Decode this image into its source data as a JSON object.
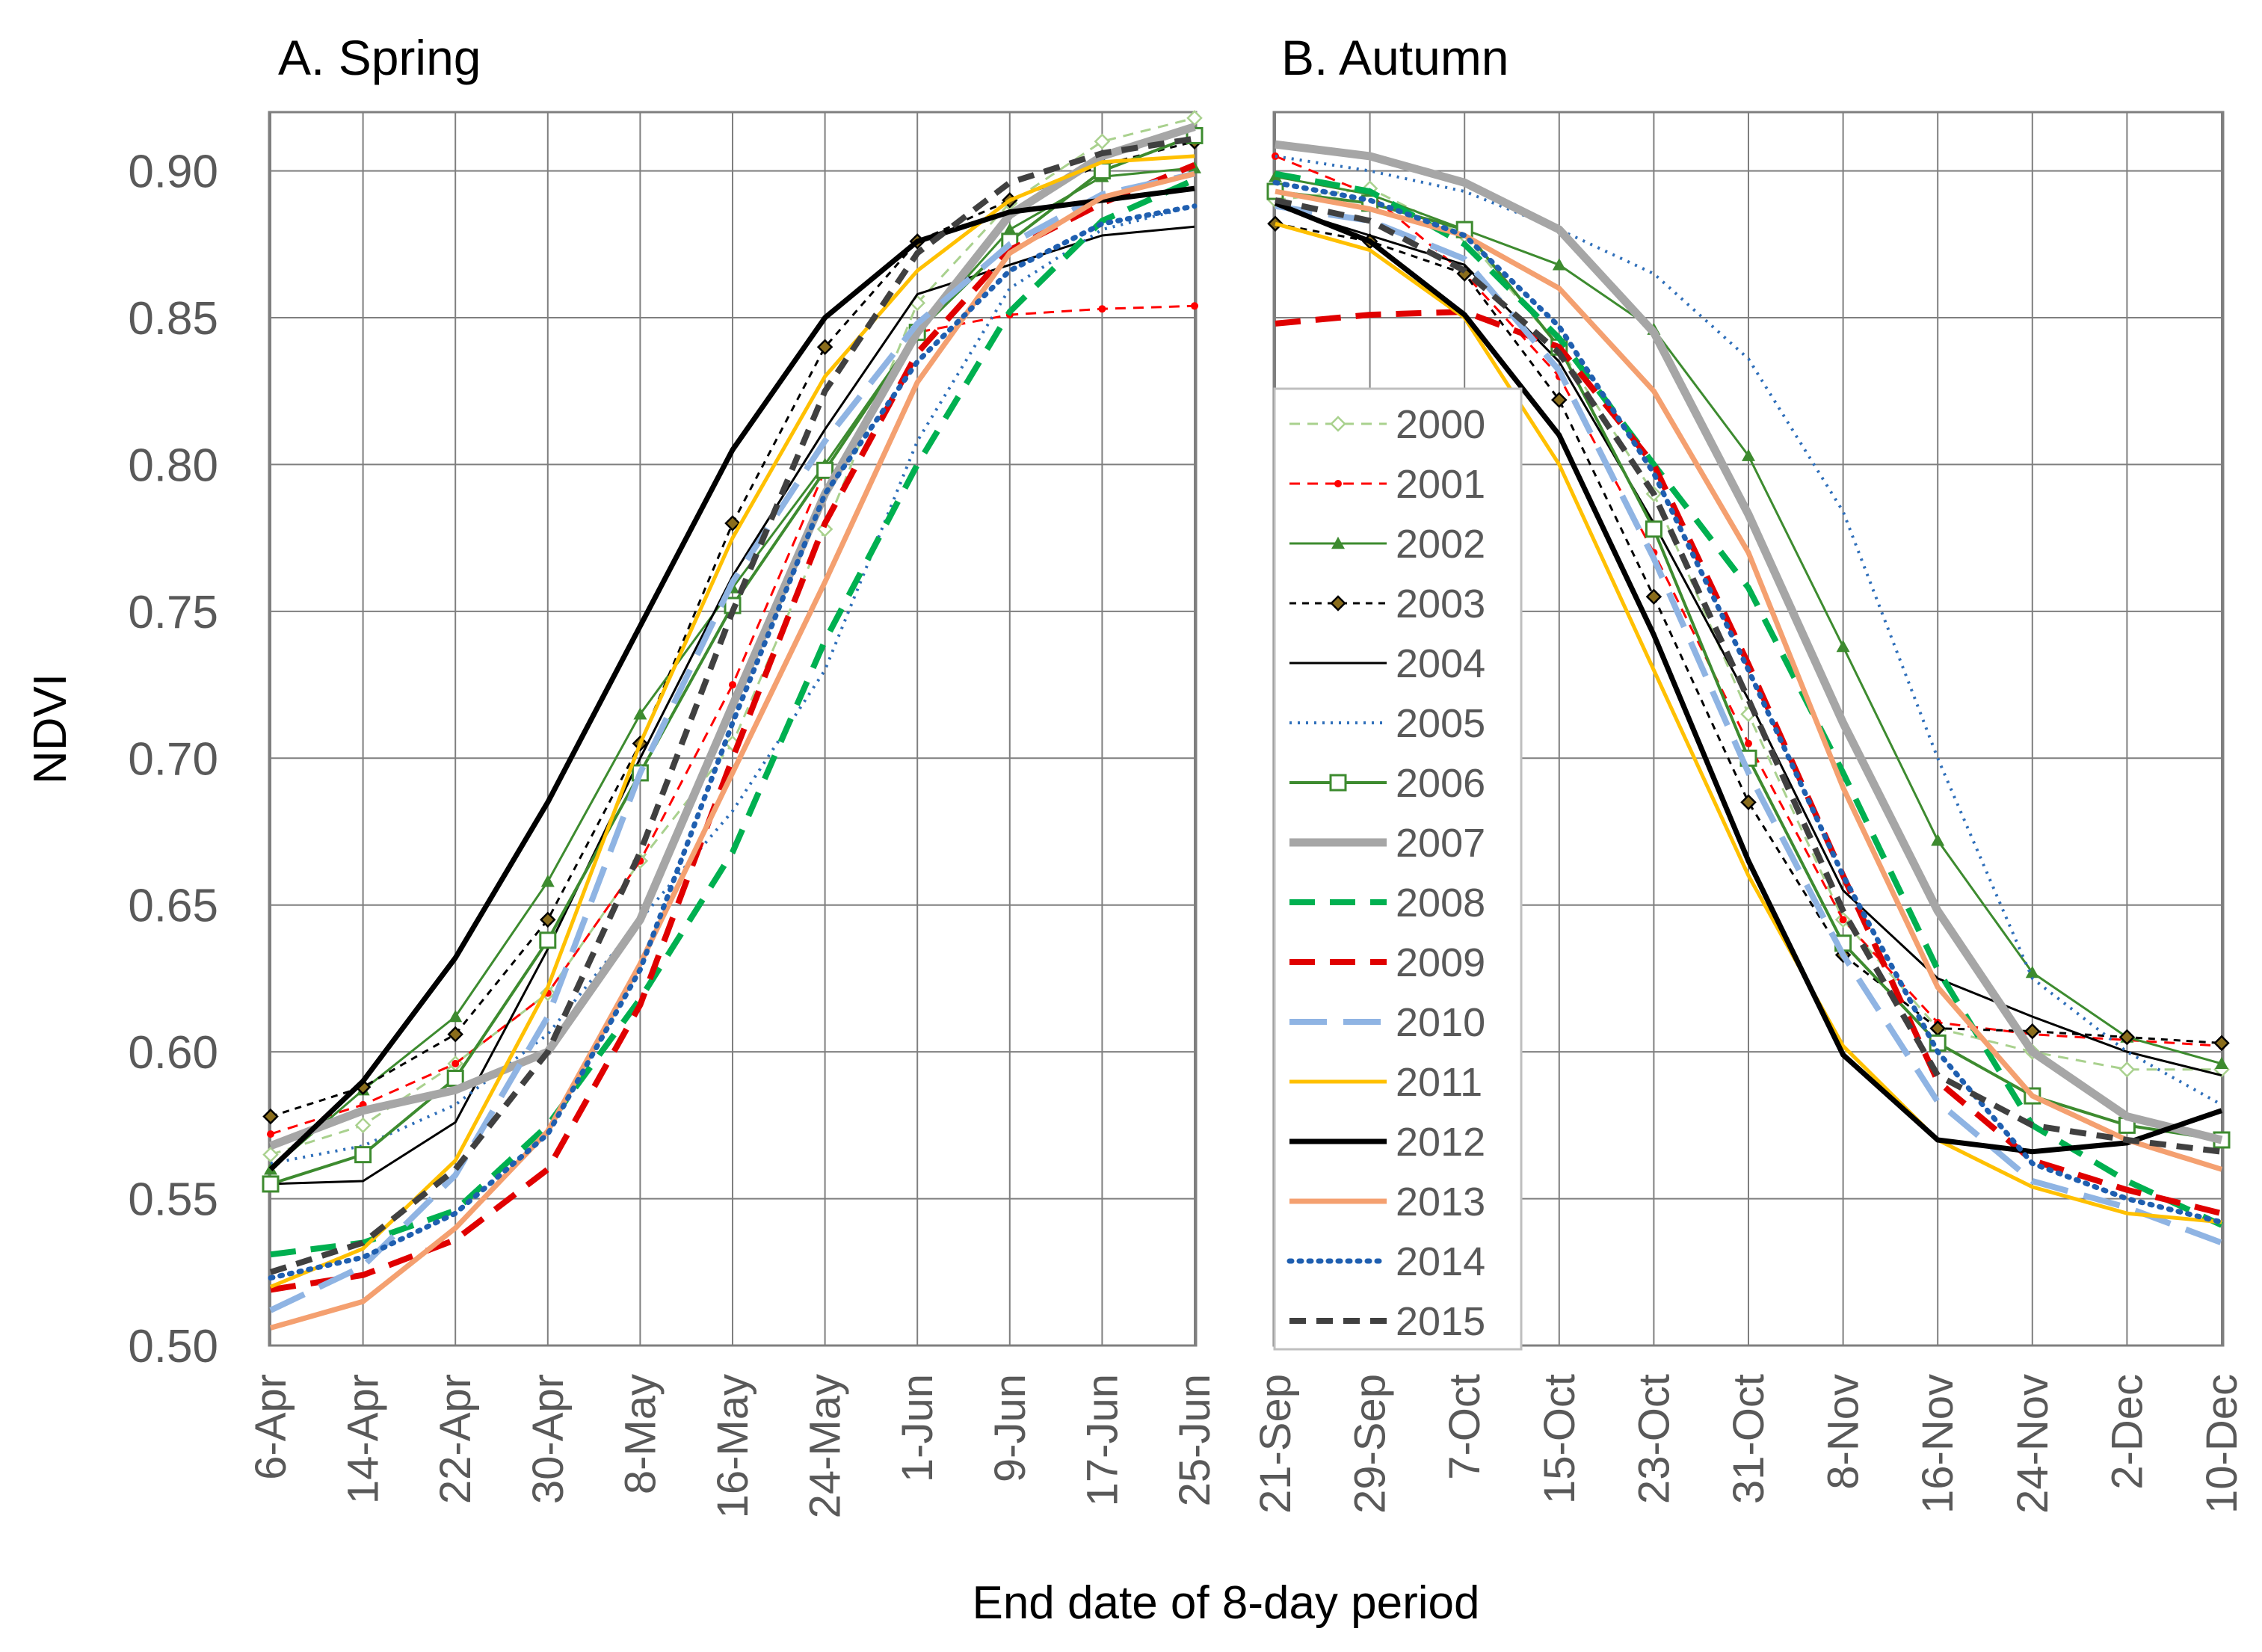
{
  "chart_data": {
    "type": "line",
    "y_label": "NDVI",
    "x_label": "End date of 8-day period",
    "ylim": [
      0.5,
      0.92
    ],
    "y_ticks": [
      "0.50",
      "0.55",
      "0.60",
      "0.65",
      "0.70",
      "0.75",
      "0.80",
      "0.85",
      "0.90"
    ],
    "legend_position": "inside autumn panel, left",
    "legend": [
      "2000",
      "2001",
      "2002",
      "2003",
      "2004",
      "2005",
      "2006",
      "2007",
      "2008",
      "2009",
      "2010",
      "2011",
      "2012",
      "2013",
      "2014",
      "2015"
    ],
    "styles": {
      "2000": {
        "color": "#a9d18e"
      },
      "2001": {
        "color": "#ff0000"
      },
      "2002": {
        "color": "#3d8b2f"
      },
      "2003": {
        "color": "#000000"
      },
      "2004": {
        "color": "#000000"
      },
      "2005": {
        "color": "#2f6fba"
      },
      "2006": {
        "color": "#3d8b2f"
      },
      "2007": {
        "color": "#a6a6a6"
      },
      "2008": {
        "color": "#00b050"
      },
      "2009": {
        "color": "#e00000"
      },
      "2010": {
        "color": "#8fb4e3"
      },
      "2011": {
        "color": "#ffc000"
      },
      "2012": {
        "color": "#000000"
      },
      "2013": {
        "color": "#f4a070"
      },
      "2014": {
        "color": "#1f5fb0"
      },
      "2015": {
        "color": "#404040"
      }
    },
    "panels": [
      {
        "title": "A. Spring",
        "categories": [
          "6-Apr",
          "14-Apr",
          "22-Apr",
          "30-Apr",
          "8-May",
          "16-May",
          "24-May",
          "1-Jun",
          "9-Jun",
          "17-Jun",
          "25-Jun"
        ],
        "series": [
          {
            "name": "2000",
            "values": [
              0.565,
              0.575,
              0.596,
              0.62,
              0.665,
              0.705,
              0.778,
              0.855,
              0.889,
              0.91,
              0.918
            ]
          },
          {
            "name": "2001",
            "values": [
              0.572,
              0.582,
              0.596,
              0.62,
              0.665,
              0.725,
              0.798,
              0.845,
              0.851,
              0.853,
              0.854
            ]
          },
          {
            "name": "2002",
            "values": [
              0.56,
              0.587,
              0.612,
              0.658,
              0.715,
              0.758,
              0.8,
              0.845,
              0.88,
              0.898,
              0.901
            ]
          },
          {
            "name": "2003",
            "values": [
              0.578,
              0.588,
              0.606,
              0.645,
              0.705,
              0.78,
              0.84,
              0.876,
              0.89,
              0.902,
              0.91
            ]
          },
          {
            "name": "2004",
            "values": [
              0.555,
              0.556,
              0.576,
              0.635,
              0.7,
              0.762,
              0.812,
              0.858,
              0.868,
              0.878,
              0.881
            ]
          },
          {
            "name": "2005",
            "values": [
              0.562,
              0.568,
              0.582,
              0.606,
              0.645,
              0.682,
              0.73,
              0.808,
              0.86,
              0.88,
              0.888
            ]
          },
          {
            "name": "2006",
            "values": [
              0.555,
              0.565,
              0.591,
              0.638,
              0.695,
              0.752,
              0.798,
              0.845,
              0.876,
              0.9,
              0.912
            ]
          },
          {
            "name": "2007",
            "values": [
              0.568,
              0.58,
              0.587,
              0.6,
              0.645,
              0.718,
              0.79,
              0.845,
              0.885,
              0.905,
              0.915
            ]
          },
          {
            "name": "2008",
            "values": [
              0.531,
              0.535,
              0.546,
              0.575,
              0.618,
              0.668,
              0.74,
              0.8,
              0.852,
              0.883,
              0.897
            ]
          },
          {
            "name": "2009",
            "values": [
              0.519,
              0.524,
              0.536,
              0.56,
              0.616,
              0.7,
              0.78,
              0.838,
              0.873,
              0.889,
              0.902
            ]
          },
          {
            "name": "2010",
            "values": [
              0.512,
              0.527,
              0.558,
              0.612,
              0.695,
              0.76,
              0.808,
              0.848,
              0.875,
              0.892,
              0.899
            ]
          },
          {
            "name": "2011",
            "values": [
              0.52,
              0.533,
              0.563,
              0.622,
              0.705,
              0.775,
              0.83,
              0.866,
              0.89,
              0.903,
              0.905
            ]
          },
          {
            "name": "2012",
            "values": [
              0.56,
              0.59,
              0.632,
              0.685,
              0.745,
              0.805,
              0.85,
              0.876,
              0.886,
              0.89,
              0.894
            ]
          },
          {
            "name": "2013",
            "values": [
              0.506,
              0.515,
              0.54,
              0.573,
              0.63,
              0.695,
              0.76,
              0.828,
              0.872,
              0.891,
              0.899
            ]
          },
          {
            "name": "2014",
            "values": [
              0.523,
              0.53,
              0.545,
              0.572,
              0.628,
              0.712,
              0.79,
              0.835,
              0.866,
              0.882,
              0.888
            ]
          },
          {
            "name": "2015",
            "values": [
              0.525,
              0.535,
              0.56,
              0.6,
              0.668,
              0.75,
              0.825,
              0.872,
              0.896,
              0.906,
              0.911
            ]
          }
        ]
      },
      {
        "title": "B. Autumn",
        "categories": [
          "21-Sep",
          "29-Sep",
          "7-Oct",
          "15-Oct",
          "23-Oct",
          "31-Oct",
          "8-Nov",
          "16-Nov",
          "24-Nov",
          "2-Dec",
          "10-Dec"
        ],
        "series": [
          {
            "name": "2000",
            "values": [
              0.89,
              0.894,
              0.878,
              0.84,
              0.79,
              0.715,
              0.645,
              0.608,
              0.6,
              0.594,
              0.594
            ]
          },
          {
            "name": "2001",
            "values": [
              0.905,
              0.892,
              0.865,
              0.83,
              0.77,
              0.705,
              0.645,
              0.61,
              0.606,
              0.604,
              0.602
            ]
          },
          {
            "name": "2002",
            "values": [
              0.898,
              0.892,
              0.88,
              0.868,
              0.846,
              0.803,
              0.738,
              0.672,
              0.627,
              0.605,
              0.596
            ]
          },
          {
            "name": "2003",
            "values": [
              0.882,
              0.876,
              0.865,
              0.822,
              0.755,
              0.685,
              0.633,
              0.608,
              0.607,
              0.605,
              0.603
            ]
          },
          {
            "name": "2004",
            "values": [
              0.888,
              0.878,
              0.868,
              0.835,
              0.78,
              0.72,
              0.655,
              0.625,
              0.612,
              0.6,
              0.592
            ]
          },
          {
            "name": "2005",
            "values": [
              0.905,
              0.9,
              0.893,
              0.88,
              0.865,
              0.836,
              0.784,
              0.7,
              0.625,
              0.6,
              0.582
            ]
          },
          {
            "name": "2006",
            "values": [
              0.893,
              0.889,
              0.88,
              0.84,
              0.778,
              0.7,
              0.637,
              0.603,
              0.585,
              0.575,
              0.57
            ]
          },
          {
            "name": "2007",
            "values": [
              0.909,
              0.905,
              0.896,
              0.88,
              0.845,
              0.783,
              0.712,
              0.648,
              0.6,
              0.578,
              0.57
            ]
          },
          {
            "name": "2008",
            "values": [
              0.899,
              0.893,
              0.875,
              0.843,
              0.8,
              0.758,
              0.695,
              0.628,
              0.575,
              0.556,
              0.541
            ]
          },
          {
            "name": "2009",
            "values": [
              0.848,
              0.851,
              0.852,
              0.84,
              0.8,
              0.732,
              0.66,
              0.59,
              0.563,
              0.553,
              0.545
            ]
          },
          {
            "name": "2010",
            "values": [
              0.888,
              0.883,
              0.87,
              0.832,
              0.768,
              0.695,
              0.633,
              0.583,
              0.556,
              0.547,
              0.535
            ]
          },
          {
            "name": "2011",
            "values": [
              0.882,
              0.873,
              0.85,
              0.8,
              0.73,
              0.66,
              0.602,
              0.57,
              0.554,
              0.545,
              0.542
            ]
          },
          {
            "name": "2012",
            "values": [
              0.889,
              0.876,
              0.851,
              0.81,
              0.742,
              0.665,
              0.599,
              0.57,
              0.566,
              0.569,
              0.58
            ]
          },
          {
            "name": "2013",
            "values": [
              0.893,
              0.887,
              0.878,
              0.86,
              0.825,
              0.77,
              0.69,
              0.622,
              0.585,
              0.57,
              0.56
            ]
          },
          {
            "name": "2014",
            "values": [
              0.896,
              0.89,
              0.878,
              0.847,
              0.797,
              0.73,
              0.66,
              0.6,
              0.562,
              0.55,
              0.542
            ]
          },
          {
            "name": "2015",
            "values": [
              0.89,
              0.883,
              0.866,
              0.838,
              0.79,
              0.72,
              0.648,
              0.592,
              0.575,
              0.57,
              0.566
            ]
          }
        ]
      }
    ]
  }
}
